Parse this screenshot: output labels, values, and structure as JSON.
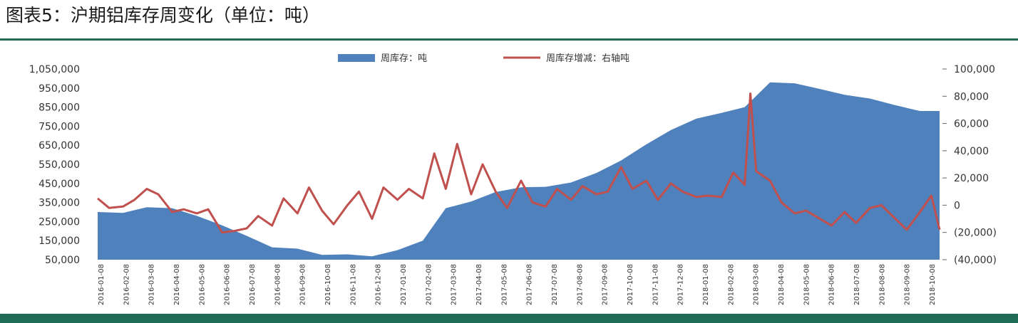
{
  "figure": {
    "title": "图表5：沪期铝库存周变化（单位：吨）"
  },
  "colors": {
    "area": "#4f81bd",
    "line": "#c0504d",
    "rule": "#1f6b55",
    "text": "#333333"
  },
  "chart_data": {
    "type": "area+line",
    "legend": [
      {
        "name": "周库存：吨",
        "kind": "area",
        "color": "#4f81bd"
      },
      {
        "name": "周库存增减：右轴吨",
        "kind": "line",
        "color": "#c0504d"
      }
    ],
    "legend_position": "top-center",
    "grid": false,
    "y_left": {
      "min": 50000,
      "max": 1050000,
      "tick_values": [
        50000,
        150000,
        250000,
        350000,
        450000,
        550000,
        650000,
        750000,
        850000,
        950000,
        1050000
      ],
      "tick_labels": [
        "50,000",
        "150,000",
        "250,000",
        "350,000",
        "450,000",
        "550,000",
        "650,000",
        "750,000",
        "850,000",
        "950,000",
        "1,050,000"
      ]
    },
    "y_right": {
      "min": -40000,
      "max": 100000,
      "tick_values": [
        100000,
        80000,
        60000,
        40000,
        20000,
        0,
        -20000,
        -40000
      ],
      "tick_labels": [
        "100,000",
        "80,000",
        "60,000",
        "40,000",
        "20,000",
        "0",
        "(20,000)",
        "(40,000)"
      ]
    },
    "x_tick_labels": [
      "2016-01-08",
      "2016-02-08",
      "2016-03-08",
      "2016-04-08",
      "2016-05-08",
      "2016-06-08",
      "2016-07-08",
      "2016-08-08",
      "2016-09-08",
      "2016-10-08",
      "2016-11-08",
      "2016-12-08",
      "2017-01-08",
      "2017-02-08",
      "2017-03-08",
      "2017-04-08",
      "2017-05-08",
      "2017-06-08",
      "2017-07-08",
      "2017-08-08",
      "2017-09-08",
      "2017-10-08",
      "2017-11-08",
      "2017-12-08",
      "2018-01-08",
      "2018-02-08",
      "2018-03-08",
      "2018-04-08",
      "2018-05-08",
      "2018-06-08",
      "2018-07-08",
      "2018-08-08",
      "2018-09-08",
      "2018-10-08"
    ],
    "series": [
      {
        "name": "周库存：吨",
        "axis": "left",
        "points": [
          [
            "2016-01-08",
            300000
          ],
          [
            "2016-02-08",
            295000
          ],
          [
            "2016-03-08",
            325000
          ],
          [
            "2016-04-08",
            320000
          ],
          [
            "2016-05-08",
            280000
          ],
          [
            "2016-06-08",
            230000
          ],
          [
            "2016-07-08",
            175000
          ],
          [
            "2016-08-08",
            115000
          ],
          [
            "2016-09-08",
            108000
          ],
          [
            "2016-10-08",
            75000
          ],
          [
            "2016-11-08",
            78000
          ],
          [
            "2016-12-08",
            68000
          ],
          [
            "2017-01-08",
            100000
          ],
          [
            "2017-02-08",
            150000
          ],
          [
            "2017-03-08",
            320000
          ],
          [
            "2017-04-08",
            355000
          ],
          [
            "2017-05-08",
            405000
          ],
          [
            "2017-06-08",
            430000
          ],
          [
            "2017-07-08",
            432000
          ],
          [
            "2017-08-08",
            455000
          ],
          [
            "2017-09-08",
            505000
          ],
          [
            "2017-10-08",
            570000
          ],
          [
            "2017-11-08",
            655000
          ],
          [
            "2017-12-08",
            730000
          ],
          [
            "2018-01-08",
            790000
          ],
          [
            "2018-02-08",
            820000
          ],
          [
            "2018-03-08",
            850000
          ],
          [
            "2018-04-08",
            980000
          ],
          [
            "2018-05-08",
            975000
          ],
          [
            "2018-06-08",
            945000
          ],
          [
            "2018-07-08",
            915000
          ],
          [
            "2018-08-08",
            895000
          ],
          [
            "2018-09-08",
            860000
          ],
          [
            "2018-10-08",
            830000
          ]
        ]
      },
      {
        "name": "周库存增减：右轴吨",
        "axis": "right",
        "points": [
          [
            "2016-01-08",
            5000
          ],
          [
            "2016-01-22",
            -2000
          ],
          [
            "2016-02-08",
            -1000
          ],
          [
            "2016-02-22",
            4000
          ],
          [
            "2016-03-08",
            12000
          ],
          [
            "2016-03-22",
            8000
          ],
          [
            "2016-04-08",
            -5000
          ],
          [
            "2016-04-22",
            -3000
          ],
          [
            "2016-05-08",
            -6000
          ],
          [
            "2016-05-22",
            -3000
          ],
          [
            "2016-06-08",
            -20000
          ],
          [
            "2016-06-22",
            -19000
          ],
          [
            "2016-07-08",
            -17000
          ],
          [
            "2016-07-22",
            -8000
          ],
          [
            "2016-08-08",
            -15000
          ],
          [
            "2016-08-22",
            5000
          ],
          [
            "2016-09-08",
            -6000
          ],
          [
            "2016-09-22",
            13000
          ],
          [
            "2016-10-08",
            -4000
          ],
          [
            "2016-10-22",
            -14000
          ],
          [
            "2016-11-08",
            0
          ],
          [
            "2016-11-22",
            10000
          ],
          [
            "2016-12-08",
            -10000
          ],
          [
            "2016-12-22",
            13000
          ],
          [
            "2017-01-08",
            4000
          ],
          [
            "2017-01-22",
            12000
          ],
          [
            "2017-02-08",
            5000
          ],
          [
            "2017-02-22",
            38000
          ],
          [
            "2017-03-08",
            12000
          ],
          [
            "2017-03-22",
            45000
          ],
          [
            "2017-04-08",
            8000
          ],
          [
            "2017-04-22",
            30000
          ],
          [
            "2017-05-08",
            10000
          ],
          [
            "2017-05-22",
            -2000
          ],
          [
            "2017-06-08",
            18000
          ],
          [
            "2017-06-22",
            2000
          ],
          [
            "2017-07-08",
            -1000
          ],
          [
            "2017-07-22",
            12000
          ],
          [
            "2017-08-08",
            4000
          ],
          [
            "2017-08-22",
            14000
          ],
          [
            "2017-09-08",
            8000
          ],
          [
            "2017-09-22",
            10000
          ],
          [
            "2017-10-08",
            28000
          ],
          [
            "2017-10-22",
            12000
          ],
          [
            "2017-11-08",
            18000
          ],
          [
            "2017-11-22",
            4000
          ],
          [
            "2017-12-08",
            16000
          ],
          [
            "2017-12-22",
            10000
          ],
          [
            "2018-01-08",
            6000
          ],
          [
            "2018-01-22",
            7000
          ],
          [
            "2018-02-08",
            6000
          ],
          [
            "2018-02-22",
            24000
          ],
          [
            "2018-03-08",
            15000
          ],
          [
            "2018-03-15",
            82000
          ],
          [
            "2018-03-22",
            25000
          ],
          [
            "2018-04-08",
            18000
          ],
          [
            "2018-04-22",
            2000
          ],
          [
            "2018-05-08",
            -6000
          ],
          [
            "2018-05-22",
            -4000
          ],
          [
            "2018-06-08",
            -10000
          ],
          [
            "2018-06-22",
            -15000
          ],
          [
            "2018-07-08",
            -5000
          ],
          [
            "2018-07-22",
            -13000
          ],
          [
            "2018-08-08",
            -2000
          ],
          [
            "2018-08-22",
            0
          ],
          [
            "2018-09-08",
            -10000
          ],
          [
            "2018-09-22",
            -18000
          ],
          [
            "2018-10-08",
            -5000
          ],
          [
            "2018-10-22",
            7000
          ],
          [
            "2018-11-01",
            -18000
          ]
        ]
      }
    ]
  }
}
